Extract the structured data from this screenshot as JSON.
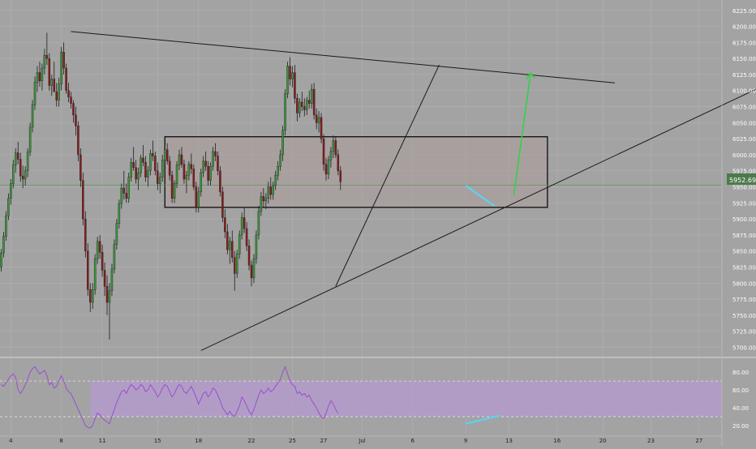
{
  "chart_data": [
    {
      "type": "candlestick",
      "name_shown": "",
      "y_ticks": [
        5700,
        5725,
        5750,
        5775,
        5800,
        5825,
        5850,
        5875,
        5900,
        5925,
        5950,
        5975,
        6000,
        6025,
        6050,
        6075,
        6100,
        6125,
        6150,
        6175,
        6200,
        6225
      ],
      "y_tick_labels": [
        "5700.00",
        "5725.00",
        "5750.00",
        "5775.00",
        "5800.00",
        "5825.00",
        "5850.00",
        "5875.00",
        "5900.00",
        "5925.00",
        "5950.00",
        "5975.00",
        "6000.00",
        "6025.00",
        "6050.00",
        "6075.00",
        "6100.00",
        "6125.00",
        "6150.00",
        "6175.00",
        "6200.00",
        "6225.00"
      ],
      "ylim": [
        5688,
        6231
      ],
      "x_tick_labels": [
        "4",
        "8",
        "11",
        "15",
        "18",
        "22",
        "25",
        "27",
        "Jul",
        "6",
        "9",
        "13",
        "16",
        "20",
        "23",
        "27"
      ],
      "x_tick_bars": [
        4,
        25,
        42,
        65,
        82,
        104,
        121,
        134,
        150,
        171,
        193,
        211,
        231,
        250,
        270,
        290
      ],
      "x_axis_bars": 300,
      "last_price_label": "5952.69",
      "last_price": 5952.69,
      "candles_ohlc": [
        [
          5825,
          5853,
          5818,
          5847
        ],
        [
          5847,
          5880,
          5840,
          5873
        ],
        [
          5873,
          5912,
          5866,
          5905
        ],
        [
          5905,
          5940,
          5898,
          5932
        ],
        [
          5932,
          5962,
          5922,
          5955
        ],
        [
          5955,
          5992,
          5948,
          5984
        ],
        [
          5984,
          6010,
          5972,
          6003
        ],
        [
          6003,
          6020,
          5985,
          5993
        ],
        [
          5993,
          6003,
          5958,
          5967
        ],
        [
          5967,
          5983,
          5948,
          5962
        ],
        [
          5962,
          5982,
          5952,
          5975
        ],
        [
          5975,
          6010,
          5965,
          6004
        ],
        [
          6004,
          6050,
          5998,
          6043
        ],
        [
          6043,
          6085,
          6035,
          6078
        ],
        [
          6078,
          6122,
          6070,
          6113
        ],
        [
          6113,
          6138,
          6098,
          6128
        ],
        [
          6128,
          6145,
          6106,
          6115
        ],
        [
          6115,
          6142,
          6100,
          6135
        ],
        [
          6135,
          6165,
          6125,
          6155
        ],
        [
          6155,
          6190,
          6140,
          6150
        ],
        [
          6150,
          6158,
          6100,
          6108
        ],
        [
          6108,
          6125,
          6092,
          6118
        ],
        [
          6118,
          6145,
          6105,
          6098
        ],
        [
          6098,
          6112,
          6075,
          6085
        ],
        [
          6085,
          6120,
          6075,
          6110
        ],
        [
          6110,
          6168,
          6100,
          6160
        ],
        [
          6160,
          6175,
          6125,
          6135
        ],
        [
          6135,
          6142,
          6095,
          6100
        ],
        [
          6100,
          6112,
          6082,
          6090
        ],
        [
          6090,
          6098,
          6072,
          6080
        ],
        [
          6080,
          6085,
          6050,
          6062
        ],
        [
          6062,
          6075,
          6030,
          6045
        ],
        [
          6045,
          6052,
          5990,
          6000
        ],
        [
          6000,
          6010,
          5950,
          5960
        ],
        [
          5960,
          5972,
          5890,
          5900
        ],
        [
          5900,
          5912,
          5840,
          5850
        ],
        [
          5850,
          5862,
          5780,
          5790
        ],
        [
          5790,
          5800,
          5755,
          5770
        ],
        [
          5770,
          5800,
          5760,
          5790
        ],
        [
          5790,
          5845,
          5782,
          5838
        ],
        [
          5838,
          5872,
          5830,
          5865
        ],
        [
          5865,
          5875,
          5838,
          5848
        ],
        [
          5848,
          5860,
          5810,
          5820
        ],
        [
          5820,
          5832,
          5780,
          5795
        ],
        [
          5795,
          5812,
          5750,
          5770
        ],
        [
          5770,
          5800,
          5712,
          5788
        ],
        [
          5788,
          5830,
          5780,
          5822
        ],
        [
          5822,
          5868,
          5815,
          5860
        ],
        [
          5860,
          5900,
          5852,
          5893
        ],
        [
          5893,
          5930,
          5885,
          5924
        ],
        [
          5924,
          5955,
          5916,
          5948
        ],
        [
          5948,
          5975,
          5930,
          5940
        ],
        [
          5940,
          5955,
          5925,
          5932
        ],
        [
          5932,
          5972,
          5925,
          5965
        ],
        [
          5965,
          5995,
          5958,
          5988
        ],
        [
          5988,
          6012,
          5975,
          5980
        ],
        [
          5980,
          5992,
          5955,
          5962
        ],
        [
          5962,
          5980,
          5945,
          5972
        ],
        [
          5972,
          6000,
          5965,
          5995
        ],
        [
          5995,
          6015,
          5982,
          5988
        ],
        [
          5988,
          5998,
          5958,
          5965
        ],
        [
          5965,
          5982,
          5950,
          5975
        ],
        [
          5975,
          6008,
          5968,
          6002
        ],
        [
          6002,
          6022,
          5990,
          5998
        ],
        [
          5998,
          6005,
          5968,
          5975
        ],
        [
          5975,
          5988,
          5945,
          5955
        ],
        [
          5955,
          5972,
          5940,
          5965
        ],
        [
          5965,
          6000,
          5958,
          5992
        ],
        [
          5992,
          6015,
          5985,
          6008
        ],
        [
          6008,
          6018,
          5985,
          5990
        ],
        [
          5990,
          5998,
          5960,
          5968
        ],
        [
          5968,
          5975,
          5925,
          5932
        ],
        [
          5932,
          5960,
          5925,
          5955
        ],
        [
          5955,
          5990,
          5948,
          5984
        ],
        [
          5984,
          6008,
          5976,
          6000
        ],
        [
          6000,
          6012,
          5980,
          5985
        ],
        [
          5985,
          5992,
          5955,
          5962
        ],
        [
          5962,
          5975,
          5940,
          5968
        ],
        [
          5968,
          5990,
          5960,
          5985
        ],
        [
          5985,
          6002,
          5970,
          5978
        ],
        [
          5978,
          5985,
          5945,
          5950
        ],
        [
          5950,
          5958,
          5910,
          5918
        ],
        [
          5918,
          5950,
          5910,
          5942
        ],
        [
          5942,
          5978,
          5935,
          5972
        ],
        [
          5972,
          5998,
          5965,
          5990
        ],
        [
          5990,
          6005,
          5975,
          5982
        ],
        [
          5982,
          5990,
          5952,
          5960
        ],
        [
          5960,
          5988,
          5952,
          5982
        ],
        [
          5982,
          6012,
          5975,
          6005
        ],
        [
          6005,
          6018,
          5990,
          5998
        ],
        [
          5998,
          6005,
          5968,
          5975
        ],
        [
          5975,
          5982,
          5935,
          5942
        ],
        [
          5942,
          5950,
          5895,
          5902
        ],
        [
          5902,
          5915,
          5870,
          5880
        ],
        [
          5880,
          5892,
          5845,
          5852
        ],
        [
          5852,
          5872,
          5830,
          5865
        ],
        [
          5865,
          5882,
          5832,
          5840
        ],
        [
          5840,
          5850,
          5788,
          5815
        ],
        [
          5815,
          5852,
          5808,
          5845
        ],
        [
          5845,
          5882,
          5838,
          5875
        ],
        [
          5875,
          5910,
          5868,
          5902
        ],
        [
          5902,
          5918,
          5878,
          5885
        ],
        [
          5885,
          5895,
          5850,
          5858
        ],
        [
          5858,
          5868,
          5820,
          5828
        ],
        [
          5828,
          5835,
          5795,
          5808
        ],
        [
          5808,
          5845,
          5800,
          5838
        ],
        [
          5838,
          5882,
          5830,
          5875
        ],
        [
          5875,
          5920,
          5868,
          5912
        ],
        [
          5912,
          5942,
          5905,
          5935
        ],
        [
          5935,
          5948,
          5918,
          5928
        ],
        [
          5928,
          5940,
          5915,
          5932
        ],
        [
          5932,
          5958,
          5924,
          5950
        ],
        [
          5950,
          5965,
          5930,
          5938
        ],
        [
          5938,
          5958,
          5930,
          5952
        ],
        [
          5952,
          5975,
          5945,
          5968
        ],
        [
          5968,
          5990,
          5960,
          5982
        ],
        [
          5982,
          6008,
          5975,
          6000
        ],
        [
          6000,
          6045,
          5990,
          6038
        ],
        [
          6038,
          6102,
          6030,
          6095
        ],
        [
          6095,
          6145,
          6088,
          6138
        ],
        [
          6138,
          6152,
          6108,
          6118
        ],
        [
          6118,
          6138,
          6105,
          6128
        ],
        [
          6128,
          6140,
          6080,
          6088
        ],
        [
          6088,
          6095,
          6052,
          6065
        ],
        [
          6065,
          6088,
          6058,
          6082
        ],
        [
          6082,
          6098,
          6068,
          6075
        ],
        [
          6075,
          6088,
          6060,
          6070
        ],
        [
          6070,
          6090,
          6062,
          6085
        ],
        [
          6085,
          6100,
          6072,
          6080
        ],
        [
          6080,
          6110,
          6072,
          6102
        ],
        [
          6102,
          6112,
          6055,
          6062
        ],
        [
          6062,
          6072,
          6040,
          6050
        ],
        [
          6050,
          6068,
          6035,
          6058
        ],
        [
          6058,
          6065,
          6018,
          6025
        ],
        [
          6025,
          6032,
          5975,
          5985
        ],
        [
          5985,
          5995,
          5960,
          5970
        ],
        [
          5970,
          5998,
          5962,
          5992
        ],
        [
          5992,
          6012,
          5980,
          6005
        ],
        [
          6005,
          6030,
          5995,
          6022
        ],
        [
          6022,
          6028,
          5995,
          6000
        ],
        [
          6000,
          6008,
          5968,
          5975
        ],
        [
          5975,
          5982,
          5945,
          5958
        ]
      ],
      "rsi": {
        "y_ticks": [
          20,
          40,
          60,
          80
        ],
        "y_tick_labels": [
          "20.00",
          "40.00",
          "60.00",
          "80.00"
        ],
        "ylim": [
          10,
          92
        ],
        "overbought": 70,
        "oversold": 30,
        "band_color": "#b59ad0",
        "line_color": "#9a4fd0",
        "values": [
          66,
          64,
          68,
          72,
          76,
          78,
          74,
          60,
          56,
          60,
          66,
          72,
          80,
          84,
          86,
          82,
          78,
          80,
          82,
          76,
          66,
          68,
          62,
          64,
          70,
          76,
          70,
          62,
          58,
          56,
          50,
          44,
          38,
          32,
          26,
          20,
          18,
          17,
          20,
          28,
          34,
          32,
          28,
          26,
          24,
          22,
          30,
          38,
          46,
          52,
          58,
          60,
          56,
          62,
          66,
          64,
          60,
          62,
          66,
          64,
          58,
          60,
          66,
          62,
          58,
          52,
          56,
          62,
          66,
          64,
          58,
          52,
          56,
          62,
          66,
          64,
          58,
          56,
          60,
          64,
          58,
          52,
          44,
          50,
          56,
          58,
          52,
          56,
          62,
          60,
          54,
          48,
          40,
          36,
          32,
          36,
          32,
          30,
          36,
          42,
          52,
          48,
          42,
          36,
          32,
          38,
          46,
          54,
          60,
          56,
          58,
          62,
          58,
          60,
          64,
          68,
          72,
          80,
          86,
          78,
          70,
          66,
          64,
          56,
          58,
          54,
          56,
          52,
          54,
          48,
          44,
          40,
          34,
          30,
          28,
          34,
          42,
          48,
          44,
          38,
          34
        ]
      },
      "annotations": {
        "trendline_color": "#1a1a1a",
        "divergence_color": "#5ad5ee",
        "projection_arrow_color": "#36d04a",
        "rectangle_border": "#000000",
        "rectangle_fill": "#ad9c9c",
        "price_line_color": "#5a9a5a"
      },
      "up_color": "#3a9a3a",
      "down_color": "#8a1c1c",
      "background": "#a3a3a3",
      "grid": true,
      "grid_color": "#b0b0b0"
    }
  ]
}
